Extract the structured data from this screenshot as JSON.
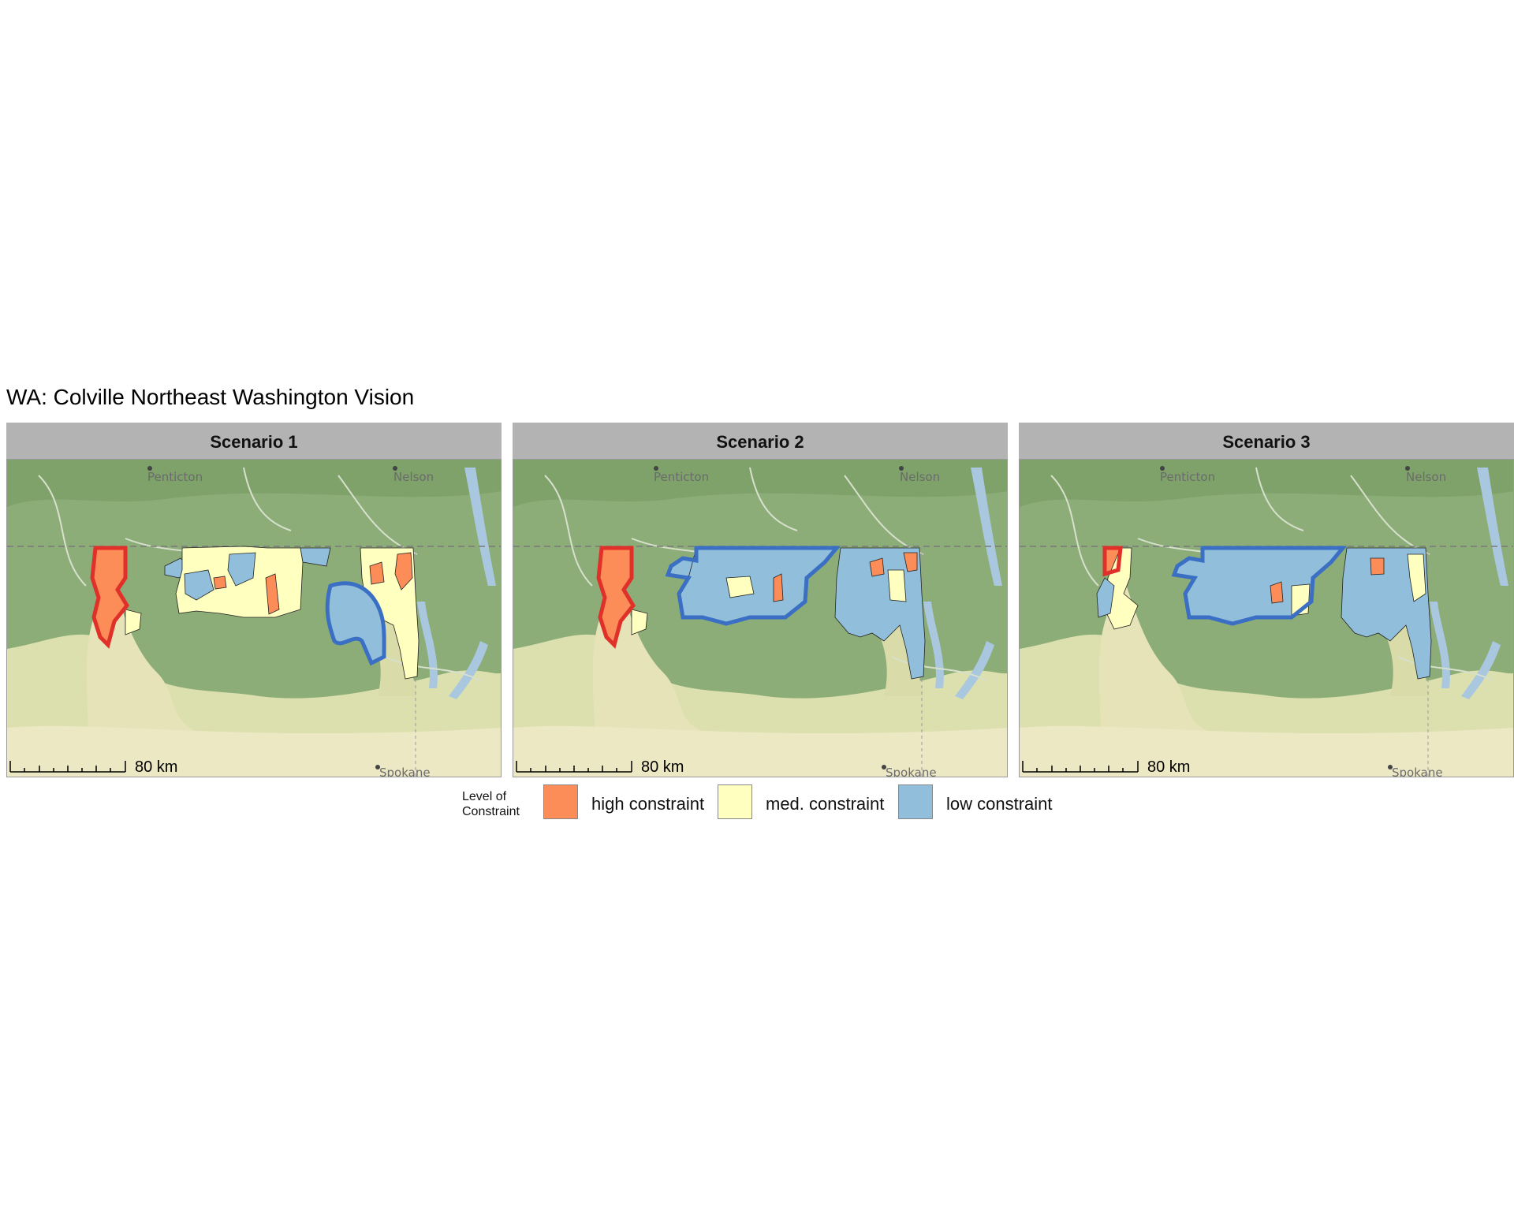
{
  "title": "WA: Colville Northeast Washington Vision",
  "panels": [
    {
      "label": "Scenario 1",
      "scale_label": "80 km",
      "cities": [
        "Penticton",
        "Nelson",
        "Spokane"
      ]
    },
    {
      "label": "Scenario 2",
      "scale_label": "80 km",
      "cities": [
        "Penticton",
        "Nelson",
        "Spokane"
      ]
    },
    {
      "label": "Scenario 3",
      "scale_label": "80 km",
      "cities": [
        "Penticton",
        "Nelson",
        "Spokane"
      ]
    }
  ],
  "legend": {
    "title": "Level of Constraint",
    "items": [
      {
        "label": "high constraint",
        "color": "#fc8d59"
      },
      {
        "label": "med. constraint",
        "color": "#ffffbf"
      },
      {
        "label": "low constraint",
        "color": "#91bfdb"
      }
    ]
  },
  "colors": {
    "high": "#fc8d59",
    "med": "#ffffbf",
    "low": "#91bfdb",
    "outline_high": "#e0302a",
    "outline_low": "#3a6fc4",
    "terrain_green": "#84a970",
    "terrain_light": "#e9e7bd",
    "water": "#a9c8e0"
  }
}
